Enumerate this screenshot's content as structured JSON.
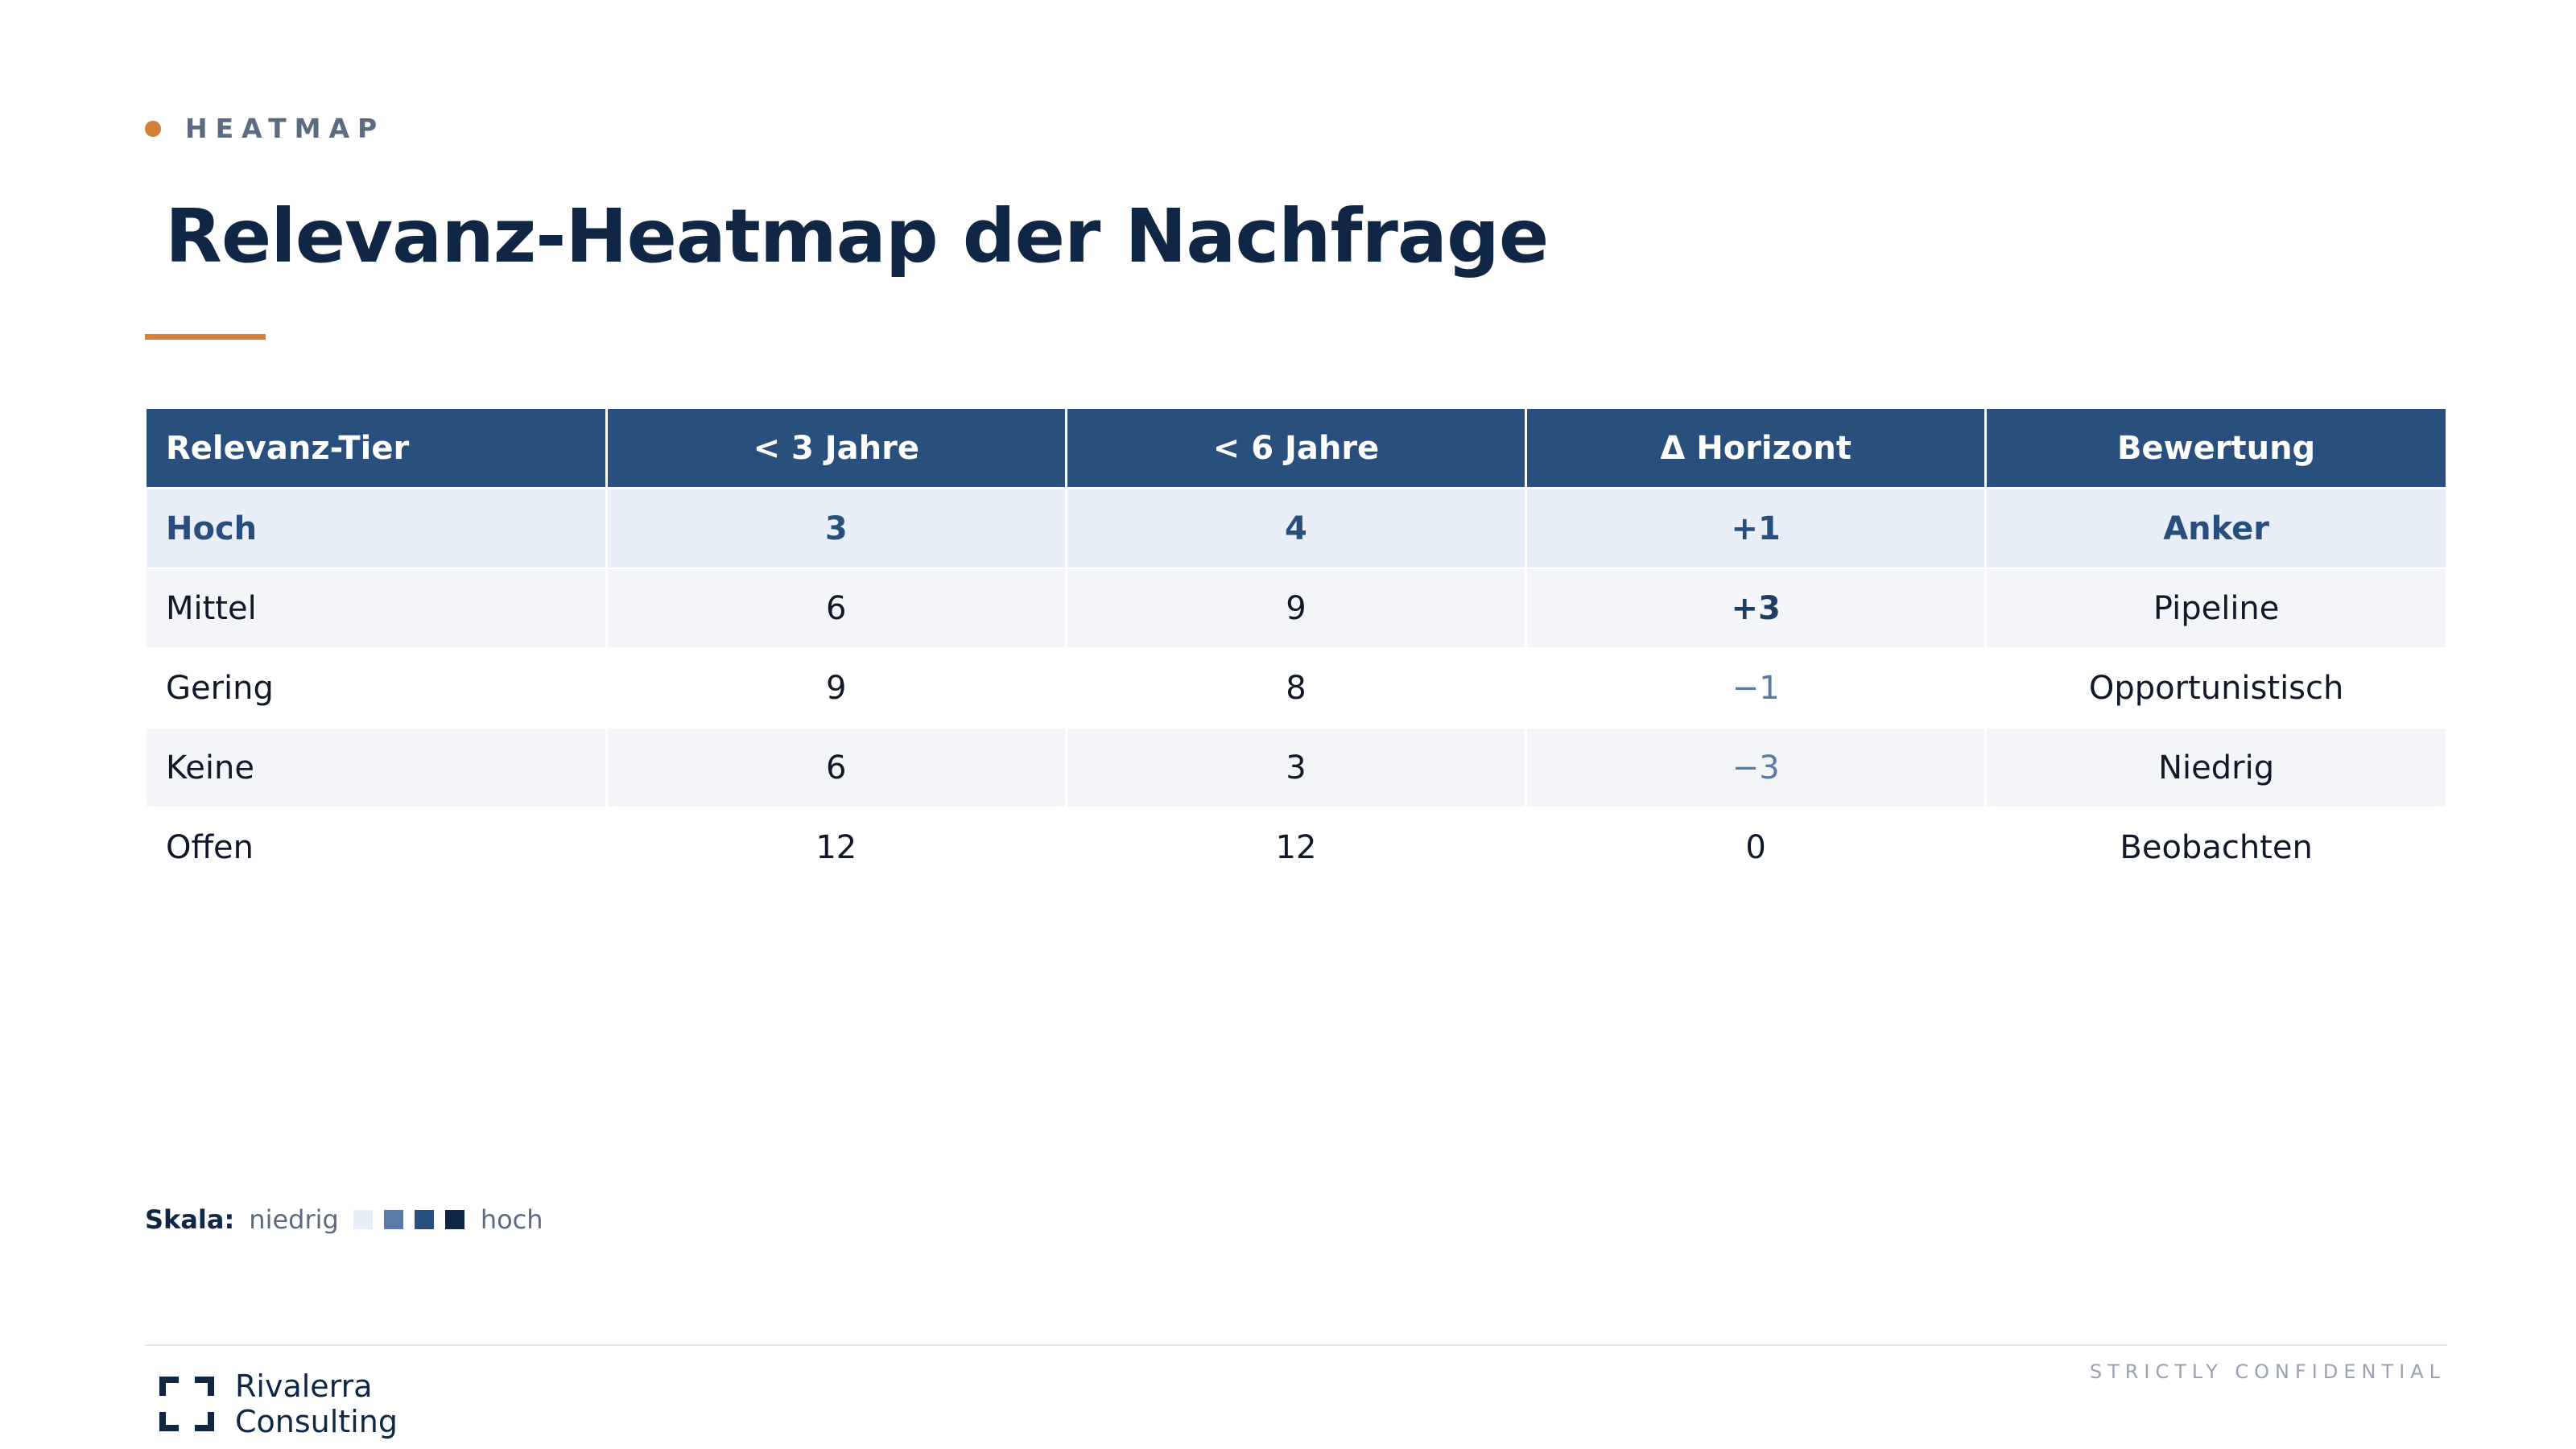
{
  "eyebrow": "HEATMAP",
  "title": "Relevanz-Heatmap der Nachfrage",
  "table": {
    "headers": [
      "Relevanz-Tier",
      "< 3 Jahre",
      "< 6 Jahre",
      "Δ Horizont",
      "Bewertung"
    ],
    "rows": [
      {
        "tier": "Hoch",
        "y3": "3",
        "y6": "4",
        "delta": "+1",
        "rating": "Anker"
      },
      {
        "tier": "Mittel",
        "y3": "6",
        "y6": "9",
        "delta": "+3",
        "rating": "Pipeline"
      },
      {
        "tier": "Gering",
        "y3": "9",
        "y6": "8",
        "delta": "−1",
        "rating": "Opportunistisch"
      },
      {
        "tier": "Keine",
        "y3": "6",
        "y6": "3",
        "delta": "−3",
        "rating": "Niedrig"
      },
      {
        "tier": "Offen",
        "y3": "12",
        "y6": "12",
        "delta": "0",
        "rating": "Beobachten"
      }
    ]
  },
  "scale": {
    "label": "Skala:",
    "low": "niedrig",
    "high": "hoch",
    "swatch_colors": [
      "#e8eff8",
      "#5b7aa6",
      "#294f7c",
      "#0f2744"
    ]
  },
  "footer": {
    "confidential": "STRICTLY CONFIDENTIAL",
    "logo_line1": "Rivalerra",
    "logo_line2": "Consulting"
  },
  "colors": {
    "accent": "#d4803a",
    "header_bg": "#294f7c",
    "title": "#0f2744"
  }
}
